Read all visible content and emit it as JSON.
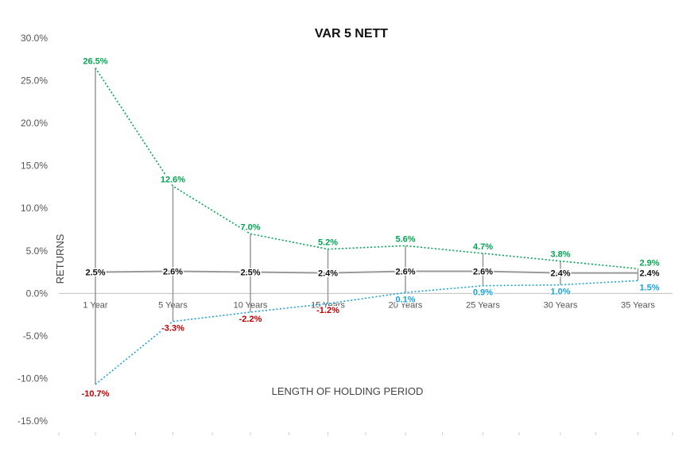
{
  "chart_data": {
    "type": "line",
    "title": "VAR 5 NETT",
    "xlabel": "LENGTH OF HOLDING PERIOD",
    "ylabel": "RETURNS",
    "categories": [
      "1 Year",
      "5 Years",
      "10 Years",
      "15 Years",
      "20 Years",
      "25 Years",
      "30 Years",
      "35 Years"
    ],
    "ylim": [
      -15,
      30
    ],
    "y_ticks": [
      30,
      25,
      20,
      15,
      10,
      5,
      0,
      -5,
      -10,
      -15
    ],
    "y_tick_labels": [
      "30.0%",
      "25.0%",
      "20.0%",
      "15.0%",
      "10.0%",
      "5.0%",
      "0.0%",
      "-5.0%",
      "-10.0%",
      "-15.0%"
    ],
    "grid": false,
    "legend": "none",
    "series": [
      {
        "role": "max",
        "style": "dotted",
        "color": "#00a651",
        "values": [
          26.5,
          12.6,
          7.0,
          5.2,
          5.6,
          4.7,
          3.8,
          2.9
        ],
        "labels": [
          "26.5%",
          "12.6%",
          "7.0%",
          "5.2%",
          "5.6%",
          "4.7%",
          "3.8%",
          "2.9%"
        ]
      },
      {
        "role": "average",
        "style": "solid",
        "color": "#999999",
        "label_color": "#111111",
        "values": [
          2.5,
          2.6,
          2.5,
          2.4,
          2.6,
          2.6,
          2.4,
          2.4
        ],
        "labels": [
          "2.5%",
          "2.6%",
          "2.5%",
          "2.4%",
          "2.6%",
          "2.6%",
          "2.4%",
          "2.4%"
        ]
      },
      {
        "role": "min",
        "style": "dotted",
        "color": "#1aa3dd",
        "values": [
          -10.7,
          -3.3,
          -2.2,
          -1.2,
          0.1,
          0.9,
          1.0,
          1.5
        ],
        "labels": [
          "-10.7%",
          "-3.3%",
          "-2.2%",
          "-1.2%",
          "0.1%",
          "0.9%",
          "1.0%",
          "1.5%"
        ],
        "label_colors": [
          "#c00000",
          "#c00000",
          "#c00000",
          "#c00000",
          "#1aa3dd",
          "#1aa3dd",
          "#1aa3dd",
          "#1aa3dd"
        ]
      }
    ],
    "range_bar_color": "#999999",
    "axis_color": "#bfbfbf"
  }
}
